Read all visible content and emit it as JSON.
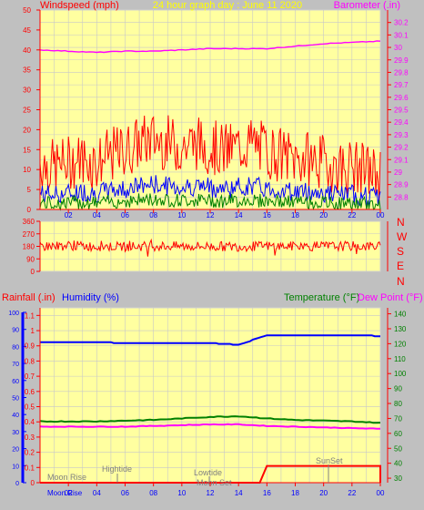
{
  "header": {
    "left_title": "Windspeed (mph)",
    "center_title": "24 hour graph day : June 11 2020",
    "right_title": "Barometer (.in)"
  },
  "bottom_header": {
    "rainfall": "Rainfall (.in)",
    "humidity": "Humidity (%)",
    "temperature": "Temperature (°F)",
    "dewpoint": "Dew Point (°F)"
  },
  "compass": [
    "N",
    "W",
    "S",
    "E",
    "N"
  ],
  "colors": {
    "background": "#c0c0c0",
    "plot_bg": "#ffffa0",
    "grid": "#c8c8c8",
    "axis": "#ff0000",
    "wind_gust": "#ff0000",
    "wind_avg": "#0000ff",
    "wind_low": "#008000",
    "barometer": "#ff00ff",
    "direction": "#ff0000",
    "humidity": "#0000ff",
    "temperature": "#008000",
    "dewpoint": "#ff00ff",
    "rainfall": "#ff0000",
    "title_yellow": "#ffff00",
    "title_magenta": "#ff00ff",
    "title_red": "#ff0000",
    "title_blue": "#0000ff",
    "title_green": "#008000"
  },
  "chart_data": [
    {
      "type": "line",
      "title": "24 hour graph day : June 11 2020",
      "ylabel": "Windspeed (mph)",
      "y2label": "Barometer (.in)",
      "ylim": [
        0,
        50
      ],
      "y2lim": [
        28.7,
        30.3
      ],
      "xlim": [
        0,
        24
      ],
      "x_ticks": [
        "02",
        "04",
        "06",
        "08",
        "10",
        "12",
        "14",
        "16",
        "18",
        "20",
        "22",
        "00"
      ],
      "y_ticks": [
        "0",
        "5",
        "10",
        "15",
        "20",
        "25",
        "30",
        "35",
        "40",
        "45",
        "50"
      ],
      "y2_ticks": [
        "28.8",
        "28.9",
        "29",
        "29.1",
        "29.2",
        "29.3",
        "29.4",
        "29.5",
        "29.6",
        "29.7",
        "29.8",
        "29.9",
        "30",
        "30.1",
        "30.2"
      ],
      "series": [
        {
          "name": "Windspeed",
          "x": [
            0,
            1,
            2,
            3,
            4,
            5,
            6,
            7,
            8,
            9,
            10,
            11,
            12,
            13,
            14,
            15,
            16,
            17,
            18,
            19,
            20,
            21,
            22,
            23,
            24
          ],
          "values": [
            11,
            10,
            11,
            12,
            11,
            13,
            14,
            16,
            17,
            16,
            15,
            16,
            15,
            14,
            15,
            16,
            14,
            13,
            12,
            12,
            11,
            10,
            10,
            9,
            8
          ]
        },
        {
          "name": "Barometer",
          "x": [
            0,
            2,
            4,
            6,
            8,
            10,
            12,
            14,
            16,
            18,
            20,
            22,
            24
          ],
          "values": [
            29.98,
            29.97,
            29.96,
            29.97,
            29.97,
            29.98,
            29.99,
            29.99,
            29.99,
            30.01,
            30.03,
            30.04,
            30.05
          ]
        }
      ]
    },
    {
      "type": "line",
      "ylim": [
        0,
        360
      ],
      "xlim": [
        0,
        24
      ],
      "y_ticks": [
        "0",
        "90",
        "180",
        "270",
        "360"
      ],
      "series": [
        {
          "name": "Wind direction",
          "x": [
            0,
            2,
            4,
            6,
            8,
            10,
            12,
            14,
            16,
            18,
            20,
            22,
            24
          ],
          "values": [
            180,
            185,
            180,
            178,
            182,
            180,
            180,
            178,
            182,
            180,
            180,
            182,
            180
          ]
        }
      ]
    },
    {
      "type": "line",
      "ylabel": "Rainfall (.in)",
      "y1label": "Humidity (%)",
      "y2label": "Temperature (°F)",
      "y3label": "Dew Point (°F)",
      "xlim": [
        0,
        24
      ],
      "rain_ticks": [
        "0",
        "0.1",
        "0.2",
        "0.3",
        "0.4",
        "0.5",
        "0.6",
        "0.7",
        "0.8",
        "0.9",
        "1",
        "1.1"
      ],
      "humidity_ticks": [
        "0",
        "10",
        "20",
        "30",
        "40",
        "50",
        "60",
        "70",
        "80",
        "90",
        "100"
      ],
      "temp_ticks": [
        "30",
        "40",
        "50",
        "60",
        "70",
        "80",
        "90",
        "100",
        "110",
        "120",
        "130",
        "140"
      ],
      "annotations": [
        "Moon Rise",
        "Hightide",
        "Lowtide",
        "Moon Set",
        "SunSet"
      ],
      "x_labels_bottom": [
        "Moon Rise",
        "02",
        "04",
        "06",
        "08",
        "10",
        "12",
        "14",
        "16",
        "18",
        "20",
        "22",
        "00"
      ],
      "series": [
        {
          "name": "Humidity",
          "x": [
            0,
            2,
            4,
            6,
            8,
            10,
            12,
            14,
            16,
            18,
            20,
            22,
            23,
            24
          ],
          "values": [
            82.5,
            82.5,
            82.5,
            82,
            82,
            82,
            82,
            81,
            86.5,
            86.5,
            86.5,
            86.5,
            86.5,
            86
          ]
        },
        {
          "name": "Temperature",
          "x": [
            0,
            2,
            4,
            6,
            8,
            10,
            12,
            14,
            16,
            18,
            20,
            22,
            24
          ],
          "values": [
            68,
            68,
            68,
            68.5,
            69,
            70,
            71,
            71.5,
            70,
            69,
            68.5,
            68,
            67
          ]
        },
        {
          "name": "Dew Point",
          "x": [
            0,
            2,
            4,
            6,
            8,
            10,
            12,
            14,
            16,
            18,
            20,
            22,
            24
          ],
          "values": [
            64.5,
            64.5,
            64.5,
            64.5,
            65,
            65.5,
            66,
            66,
            65,
            64.5,
            64,
            63.5,
            63
          ]
        },
        {
          "name": "Rainfall",
          "x": [
            0,
            15.5,
            16,
            17,
            24
          ],
          "values": [
            0,
            0,
            0.11,
            0.11,
            0.11
          ]
        }
      ]
    }
  ]
}
